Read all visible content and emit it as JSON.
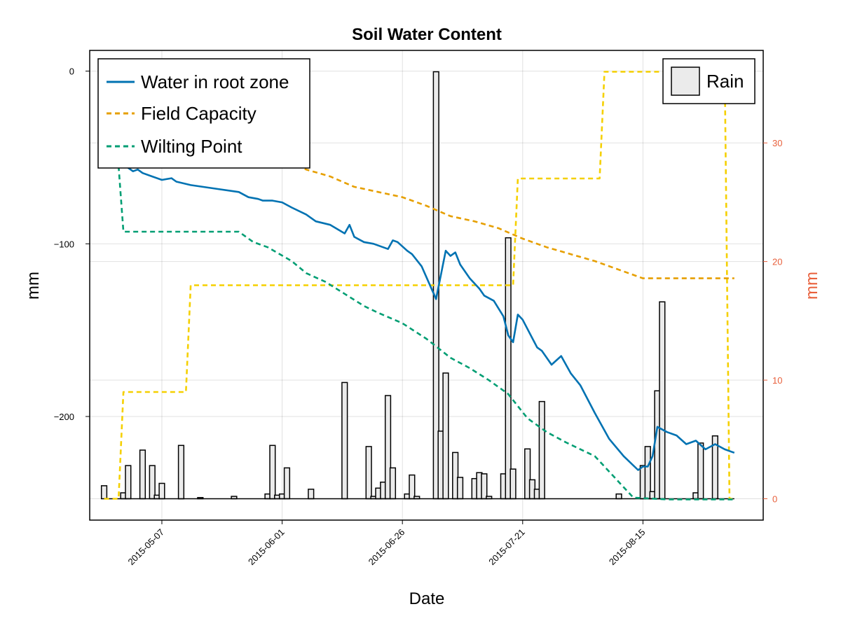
{
  "chart_data": {
    "type": "line",
    "title": "Soil Water Content",
    "xlabel": "Date",
    "ylabel": "mm",
    "ylabel_right": "mm",
    "x_range": [
      "2015-04-22",
      "2015-09-09"
    ],
    "ylim": [
      -260,
      12
    ],
    "y2lim": [
      -1.8,
      37.8
    ],
    "grid": true,
    "x_ticks": [
      "2015-05-07",
      "2015-06-01",
      "2015-06-26",
      "2015-07-21",
      "2015-08-15"
    ],
    "y_ticks": [
      0,
      -100,
      -200
    ],
    "y2_ticks": [
      0,
      10,
      20,
      30
    ],
    "legend_left": {
      "placement": "top-left",
      "entries": [
        "Water in root zone",
        "Field Capacity",
        "Wilting Point"
      ]
    },
    "legend_right": {
      "placement": "top-right",
      "entries": [
        "Rain"
      ]
    },
    "colors": {
      "water": "#0072b2",
      "field_capacity": "#e69f00",
      "wilting_point": "#009e73",
      "root_depth": "#f5d000",
      "rain_fill": "#ebebeb",
      "right_axis": "#e8603c"
    },
    "series": [
      {
        "name": "Water in root zone",
        "axis": "left",
        "style": "solid",
        "points": [
          [
            "2015-04-28",
            -55
          ],
          [
            "2015-04-29",
            -53
          ],
          [
            "2015-04-30",
            -56
          ],
          [
            "2015-05-01",
            -58
          ],
          [
            "2015-05-02",
            -57
          ],
          [
            "2015-05-03",
            -59
          ],
          [
            "2015-05-05",
            -61
          ],
          [
            "2015-05-07",
            -63
          ],
          [
            "2015-05-09",
            -62
          ],
          [
            "2015-05-10",
            -64
          ],
          [
            "2015-05-13",
            -66
          ],
          [
            "2015-05-18",
            -68
          ],
          [
            "2015-05-23",
            -70
          ],
          [
            "2015-05-25",
            -73
          ],
          [
            "2015-05-27",
            -74
          ],
          [
            "2015-05-28",
            -75
          ],
          [
            "2015-05-30",
            -75
          ],
          [
            "2015-06-01",
            -76
          ],
          [
            "2015-06-03",
            -79
          ],
          [
            "2015-06-06",
            -83
          ],
          [
            "2015-06-08",
            -87
          ],
          [
            "2015-06-11",
            -89
          ],
          [
            "2015-06-14",
            -94
          ],
          [
            "2015-06-15",
            -89
          ],
          [
            "2015-06-16",
            -96
          ],
          [
            "2015-06-18",
            -99
          ],
          [
            "2015-06-20",
            -100
          ],
          [
            "2015-06-23",
            -103
          ],
          [
            "2015-06-24",
            -98
          ],
          [
            "2015-06-25",
            -99
          ],
          [
            "2015-06-27",
            -104
          ],
          [
            "2015-06-28",
            -106
          ],
          [
            "2015-06-30",
            -113
          ],
          [
            "2015-07-03",
            -132
          ],
          [
            "2015-07-05",
            -104
          ],
          [
            "2015-07-06",
            -107
          ],
          [
            "2015-07-07",
            -105
          ],
          [
            "2015-07-08",
            -112
          ],
          [
            "2015-07-10",
            -120
          ],
          [
            "2015-07-12",
            -126
          ],
          [
            "2015-07-13",
            -130
          ],
          [
            "2015-07-15",
            -133
          ],
          [
            "2015-07-17",
            -142
          ],
          [
            "2015-07-18",
            -153
          ],
          [
            "2015-07-19",
            -157
          ],
          [
            "2015-07-20",
            -141
          ],
          [
            "2015-07-21",
            -144
          ],
          [
            "2015-07-24",
            -160
          ],
          [
            "2015-07-25",
            -162
          ],
          [
            "2015-07-27",
            -170
          ],
          [
            "2015-07-29",
            -165
          ],
          [
            "2015-07-31",
            -175
          ],
          [
            "2015-08-02",
            -182
          ],
          [
            "2015-08-05",
            -198
          ],
          [
            "2015-08-08",
            -213
          ],
          [
            "2015-08-11",
            -223
          ],
          [
            "2015-08-14",
            -231
          ],
          [
            "2015-08-15",
            -229
          ],
          [
            "2015-08-16",
            -229
          ],
          [
            "2015-08-17",
            -223
          ],
          [
            "2015-08-18",
            -206
          ],
          [
            "2015-08-20",
            -209
          ],
          [
            "2015-08-22",
            -211
          ],
          [
            "2015-08-24",
            -216
          ],
          [
            "2015-08-26",
            -214
          ],
          [
            "2015-08-28",
            -219
          ],
          [
            "2015-08-30",
            -216
          ],
          [
            "2015-09-01",
            -219
          ],
          [
            "2015-09-03",
            -221
          ]
        ]
      },
      {
        "name": "Field Capacity",
        "axis": "left",
        "style": "dashed",
        "points": [
          [
            "2015-06-01",
            -50
          ],
          [
            "2015-06-06",
            -57
          ],
          [
            "2015-06-11",
            -61
          ],
          [
            "2015-06-16",
            -67
          ],
          [
            "2015-06-21",
            -70
          ],
          [
            "2015-06-26",
            -73
          ],
          [
            "2015-07-01",
            -78
          ],
          [
            "2015-07-06",
            -84
          ],
          [
            "2015-07-11",
            -87
          ],
          [
            "2015-07-16",
            -91
          ],
          [
            "2015-07-21",
            -97
          ],
          [
            "2015-07-26",
            -102
          ],
          [
            "2015-07-31",
            -106
          ],
          [
            "2015-08-05",
            -110
          ],
          [
            "2015-08-10",
            -115
          ],
          [
            "2015-08-15",
            -120
          ],
          [
            "2015-09-03",
            -120
          ]
        ]
      },
      {
        "name": "Wilting Point",
        "axis": "left",
        "style": "dashed",
        "points": [
          [
            "2015-04-28",
            -55
          ],
          [
            "2015-04-29",
            -93
          ],
          [
            "2015-05-23",
            -93
          ],
          [
            "2015-05-26",
            -99
          ],
          [
            "2015-05-29",
            -102
          ],
          [
            "2015-06-03",
            -110
          ],
          [
            "2015-06-06",
            -117
          ],
          [
            "2015-06-10",
            -122
          ],
          [
            "2015-06-14",
            -129
          ],
          [
            "2015-06-18",
            -136
          ],
          [
            "2015-06-21",
            -140
          ],
          [
            "2015-06-26",
            -146
          ],
          [
            "2015-07-01",
            -155
          ],
          [
            "2015-07-06",
            -166
          ],
          [
            "2015-07-10",
            -172
          ],
          [
            "2015-07-14",
            -179
          ],
          [
            "2015-07-18",
            -187
          ],
          [
            "2015-07-22",
            -201
          ],
          [
            "2015-07-26",
            -209
          ],
          [
            "2015-07-30",
            -215
          ],
          [
            "2015-08-05",
            -223
          ],
          [
            "2015-08-10",
            -238
          ],
          [
            "2015-08-13",
            -247
          ],
          [
            "2015-08-20",
            -248
          ],
          [
            "2015-09-03",
            -248
          ]
        ]
      },
      {
        "name": "Root zone step",
        "axis": "right",
        "style": "dashed",
        "points": [
          [
            "2015-04-25",
            0
          ],
          [
            "2015-04-28",
            0
          ],
          [
            "2015-04-29",
            9
          ],
          [
            "2015-05-12",
            9
          ],
          [
            "2015-05-13",
            18
          ],
          [
            "2015-07-19",
            18
          ],
          [
            "2015-07-20",
            27
          ],
          [
            "2015-08-06",
            27
          ],
          [
            "2015-08-07",
            36
          ],
          [
            "2015-09-01",
            36
          ],
          [
            "2015-09-02",
            0
          ],
          [
            "2015-09-03",
            0
          ]
        ]
      }
    ],
    "rain": {
      "name": "Rain",
      "axis": "right",
      "points": [
        [
          "2015-04-25",
          1.1
        ],
        [
          "2015-04-29",
          0.5
        ],
        [
          "2015-04-30",
          2.8
        ],
        [
          "2015-05-03",
          4.1
        ],
        [
          "2015-05-05",
          2.8
        ],
        [
          "2015-05-06",
          0.3
        ],
        [
          "2015-05-07",
          1.3
        ],
        [
          "2015-05-11",
          4.5
        ],
        [
          "2015-05-15",
          0.1
        ],
        [
          "2015-05-22",
          0.2
        ],
        [
          "2015-05-29",
          0.4
        ],
        [
          "2015-05-30",
          4.5
        ],
        [
          "2015-05-31",
          0.3
        ],
        [
          "2015-06-01",
          0.4
        ],
        [
          "2015-06-02",
          2.6
        ],
        [
          "2015-06-07",
          0.8
        ],
        [
          "2015-06-14",
          9.8
        ],
        [
          "2015-06-19",
          4.4
        ],
        [
          "2015-06-20",
          0.2
        ],
        [
          "2015-06-21",
          0.9
        ],
        [
          "2015-06-22",
          1.4
        ],
        [
          "2015-06-23",
          8.7
        ],
        [
          "2015-06-24",
          2.6
        ],
        [
          "2015-06-27",
          0.4
        ],
        [
          "2015-06-28",
          2.0
        ],
        [
          "2015-06-29",
          0.2
        ],
        [
          "2015-07-03",
          36.0
        ],
        [
          "2015-07-04",
          5.7
        ],
        [
          "2015-07-05",
          10.6
        ],
        [
          "2015-07-07",
          3.9
        ],
        [
          "2015-07-08",
          1.8
        ],
        [
          "2015-07-11",
          1.7
        ],
        [
          "2015-07-12",
          2.2
        ],
        [
          "2015-07-13",
          2.1
        ],
        [
          "2015-07-14",
          0.2
        ],
        [
          "2015-07-17",
          2.1
        ],
        [
          "2015-07-18",
          22.0
        ],
        [
          "2015-07-19",
          2.5
        ],
        [
          "2015-07-22",
          4.2
        ],
        [
          "2015-07-23",
          1.6
        ],
        [
          "2015-07-24",
          0.8
        ],
        [
          "2015-07-25",
          8.2
        ],
        [
          "2015-08-10",
          0.4
        ],
        [
          "2015-08-15",
          2.8
        ],
        [
          "2015-08-16",
          4.4
        ],
        [
          "2015-08-17",
          0.6
        ],
        [
          "2015-08-18",
          9.1
        ],
        [
          "2015-08-19",
          16.6
        ],
        [
          "2015-08-26",
          0.5
        ],
        [
          "2015-08-27",
          4.7
        ],
        [
          "2015-08-30",
          5.3
        ]
      ]
    }
  }
}
